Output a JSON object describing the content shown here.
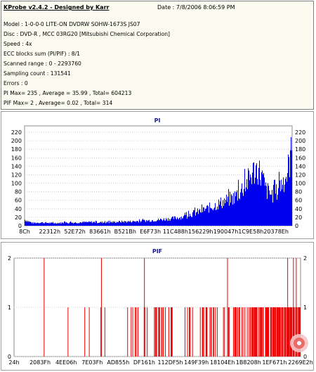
{
  "info": {
    "title": "KProbe v2.4.2 - Designed by Karr",
    "date": "Date : 7/8/2006 8:06:59 PM",
    "lines": [
      "Model : 1-0-0-0 LITE-ON DVDRW SOHW-1673S JS07",
      "Disc : DVD-R , MCC 03RG20  [Mitsubishi Chemical Corporation]",
      "Speed : 4x",
      "ECC blocks sum (PI/PIF) : 8/1",
      "Scanned range : 0 - 2293760",
      "Sampling count : 131541",
      "Errors : 0",
      "PI Max= 235 , Average = 35.99 , Total= 604213",
      "PIF Max= 2 , Average= 0.02 , Total= 314"
    ]
  },
  "colors": {
    "pi": "#0000ee",
    "pif": "#ee0000",
    "title": "#1a1a8c"
  },
  "chart_data": [
    {
      "type": "area",
      "title": "PI",
      "ylim": [
        0,
        235
      ],
      "yticks": [
        0,
        20,
        40,
        60,
        80,
        100,
        120,
        140,
        160,
        180,
        200,
        220
      ],
      "xtick_labels": [
        "8Ch",
        "22312h",
        "52E72h",
        "83661h",
        "B521Bh",
        "E6F73h",
        "11C488h",
        "156229h",
        "190047h",
        "1C9E58h",
        "20378Eh"
      ],
      "x_fraction": [
        0.0,
        0.03,
        0.06,
        0.1,
        0.15,
        0.2,
        0.25,
        0.3,
        0.35,
        0.4,
        0.45,
        0.5,
        0.55,
        0.6,
        0.62,
        0.66,
        0.7,
        0.74,
        0.78,
        0.8,
        0.83,
        0.85,
        0.87,
        0.89,
        0.9,
        0.92,
        0.94,
        0.96,
        0.98,
        0.99,
        1.0
      ],
      "values": [
        18,
        8,
        10,
        8,
        9,
        10,
        11,
        10,
        12,
        13,
        15,
        18,
        22,
        28,
        35,
        45,
        58,
        72,
        85,
        100,
        130,
        160,
        175,
        140,
        110,
        95,
        100,
        130,
        155,
        200,
        235
      ]
    },
    {
      "type": "bar",
      "title": "PIF",
      "ylim": [
        0,
        2
      ],
      "yticks": [
        0,
        1,
        2
      ],
      "xtick_labels": [
        "24h",
        "2083Fh",
        "4EE06h",
        "7E03Fh",
        "AD855h",
        "DF161h",
        "112DF5h",
        "149F39h",
        "18104Eh",
        "1B8208h",
        "1EF671h",
        "2269E2h"
      ],
      "value_2_fraction": [
        0.105,
        0.305,
        0.455,
        0.745,
        0.955,
        0.975,
        0.985
      ],
      "total": 314
    }
  ]
}
